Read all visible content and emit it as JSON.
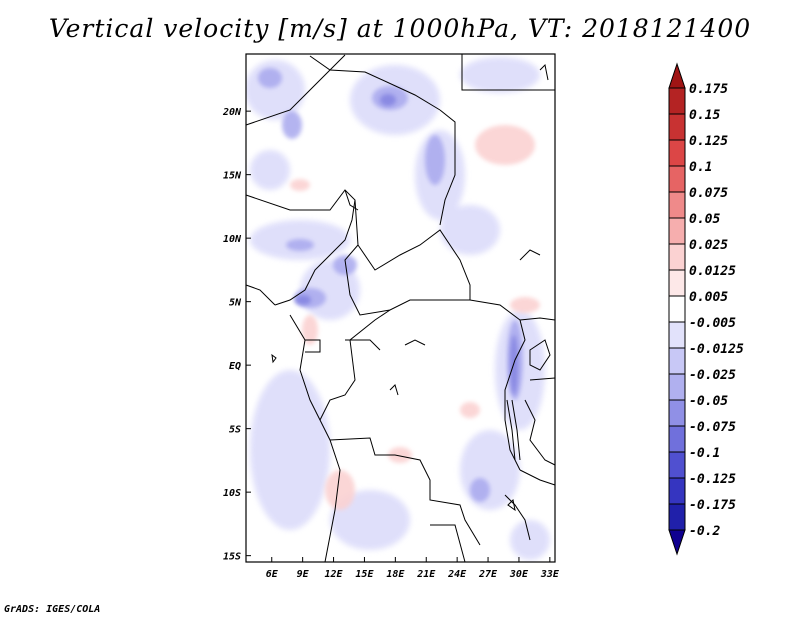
{
  "chart_data": {
    "type": "heatmap",
    "title": "Vertical velocity [m/s] at 1000hPa, VT: 2018121400",
    "x_ticks": [
      "6E",
      "9E",
      "12E",
      "15E",
      "18E",
      "21E",
      "24E",
      "27E",
      "30E",
      "33E"
    ],
    "x_tick_values": [
      6,
      9,
      12,
      15,
      18,
      21,
      24,
      27,
      30,
      33
    ],
    "y_ticks": [
      "20N",
      "15N",
      "10N",
      "5N",
      "EQ",
      "5S",
      "10S",
      "15S"
    ],
    "y_tick_values": [
      20,
      15,
      10,
      5,
      0,
      -5,
      -10,
      -15
    ],
    "xlim": [
      3.5,
      33.5
    ],
    "ylim": [
      -15.5,
      24.5
    ],
    "colorbar": {
      "labels": [
        "0.175",
        "0.15",
        "0.125",
        "0.1",
        "0.075",
        "0.05",
        "0.025",
        "0.0125",
        "0.005",
        "-0.005",
        "-0.0125",
        "-0.025",
        "-0.05",
        "-0.075",
        "-0.1",
        "-0.125",
        "-0.175",
        "-0.2"
      ],
      "colors": [
        "#a01414",
        "#b42323",
        "#c83232",
        "#dc4646",
        "#e66464",
        "#ef8a8a",
        "#f6aeae",
        "#fbd2d2",
        "#fde8e8",
        "#ffffff",
        "#e2e2fb",
        "#c8c8f6",
        "#b0b0ef",
        "#9090e6",
        "#7070dc",
        "#5050d0",
        "#3535c0",
        "#2020aa",
        "#100090"
      ]
    }
  },
  "credit": "GrADS: IGES/COLA"
}
